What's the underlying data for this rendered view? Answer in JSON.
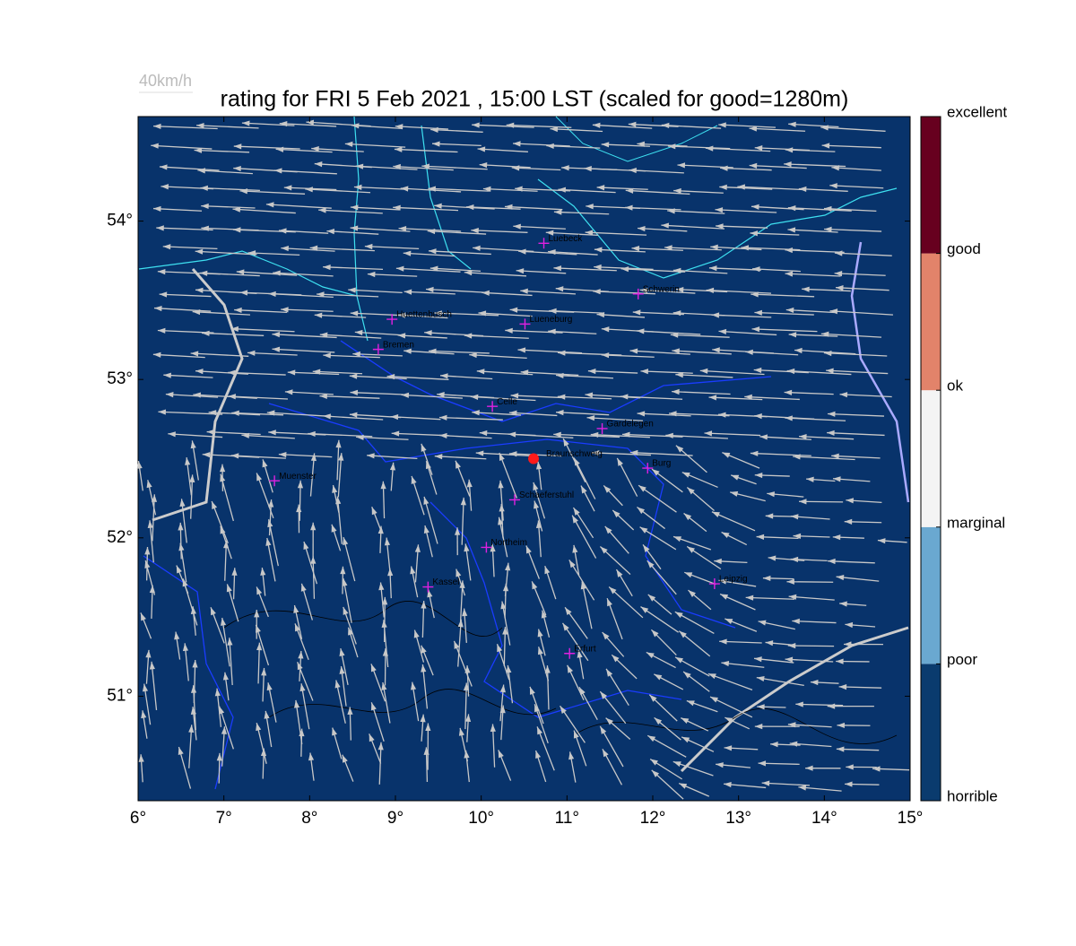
{
  "map": {
    "title": "rating for FRI 5 Feb 2021 , 15:00 LST (scaled for good=1280m)",
    "wind_scale_label": "40km/h",
    "background": "#08336b",
    "xlim": [
      6,
      15
    ],
    "ylim": [
      50.34,
      54.66
    ],
    "xticks": [
      {
        "value": 6,
        "label": "6°"
      },
      {
        "value": 7,
        "label": "7°"
      },
      {
        "value": 8,
        "label": "8°"
      },
      {
        "value": 9,
        "label": "9°"
      },
      {
        "value": 10,
        "label": "10°"
      },
      {
        "value": 11,
        "label": "11°"
      },
      {
        "value": 12,
        "label": "12°"
      },
      {
        "value": 13,
        "label": "13°"
      },
      {
        "value": 14,
        "label": "14°"
      },
      {
        "value": 15,
        "label": "15°"
      }
    ],
    "yticks": [
      {
        "value": 51,
        "label": "51°"
      },
      {
        "value": 52,
        "label": "52°"
      },
      {
        "value": 53,
        "label": "53°"
      },
      {
        "value": 54,
        "label": "54°"
      }
    ],
    "cities": [
      {
        "name": "Luebeck",
        "lon": 10.73,
        "lat": 53.86
      },
      {
        "name": "Schwerin",
        "lon": 11.83,
        "lat": 53.54
      },
      {
        "name": "Huettenbusch",
        "lon": 8.96,
        "lat": 53.38
      },
      {
        "name": "Lueneburg",
        "lon": 10.51,
        "lat": 53.35
      },
      {
        "name": "Bremen",
        "lon": 8.8,
        "lat": 53.19
      },
      {
        "name": "Celle",
        "lon": 10.13,
        "lat": 52.83
      },
      {
        "name": "Gardelegen",
        "lon": 11.41,
        "lat": 52.69
      },
      {
        "name": "Braunschweig",
        "lon": 10.61,
        "lat": 52.5,
        "site": true
      },
      {
        "name": "Burg",
        "lon": 11.94,
        "lat": 52.44
      },
      {
        "name": "Muenster",
        "lon": 7.59,
        "lat": 52.36
      },
      {
        "name": "Schaeferstuhl",
        "lon": 10.39,
        "lat": 52.24
      },
      {
        "name": "Northeim",
        "lon": 10.06,
        "lat": 51.94
      },
      {
        "name": "Kassel",
        "lon": 9.38,
        "lat": 51.69
      },
      {
        "name": "Leipzig",
        "lon": 12.72,
        "lat": 51.71
      },
      {
        "name": "Erfurt",
        "lon": 11.03,
        "lat": 51.27
      }
    ],
    "colorbar": {
      "labels": [
        "horrible",
        "poor",
        "marginal",
        "ok",
        "good",
        "excellent"
      ],
      "colors": [
        "#0a3b6e",
        "#6aa8d0",
        "#f4f4f4",
        "#e2836a",
        "#67001f"
      ]
    }
  }
}
